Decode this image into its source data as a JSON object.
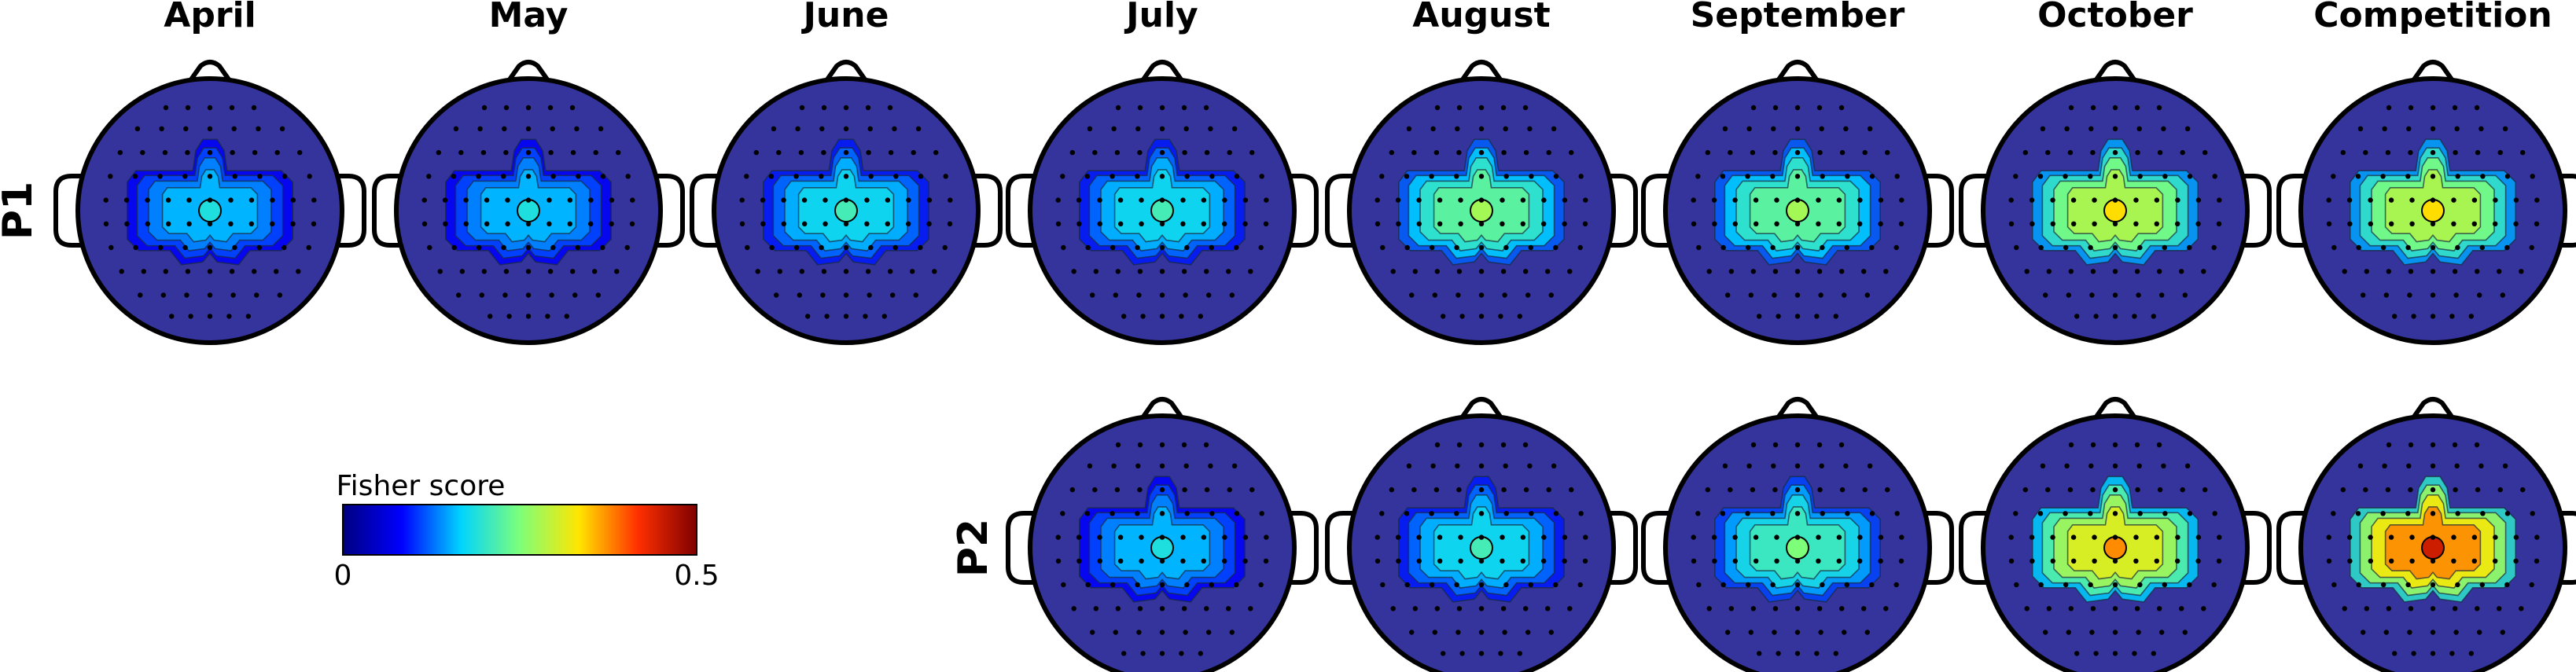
{
  "columns": [
    "April",
    "May",
    "June",
    "July",
    "August",
    "September",
    "October",
    "Competition"
  ],
  "rows": [
    {
      "label": "P1",
      "maps": [
        {
          "column": "April",
          "level": 0.15
        },
        {
          "column": "May",
          "level": 0.15
        },
        {
          "column": "June",
          "level": 0.17
        },
        {
          "column": "July",
          "level": 0.17
        },
        {
          "column": "August",
          "level": 0.22
        },
        {
          "column": "September",
          "level": 0.22
        },
        {
          "column": "October",
          "level": 0.27
        },
        {
          "column": "Competition",
          "level": 0.27
        }
      ]
    },
    {
      "label": "P2",
      "maps": [
        {
          "column": "July",
          "level": 0.15
        },
        {
          "column": "August",
          "level": 0.17
        },
        {
          "column": "September",
          "level": 0.2
        },
        {
          "column": "October",
          "level": 0.3
        },
        {
          "column": "Competition",
          "level": 0.36
        }
      ]
    }
  ],
  "colorbar": {
    "title": "Fisher score",
    "min": "0",
    "max": "0.5",
    "colormap": "jet",
    "stops": [
      "#00007f",
      "#0000ff",
      "#00d4ff",
      "#7dff7a",
      "#ffe600",
      "#ff3000",
      "#7f0000"
    ]
  },
  "background_color": "#34349c"
}
